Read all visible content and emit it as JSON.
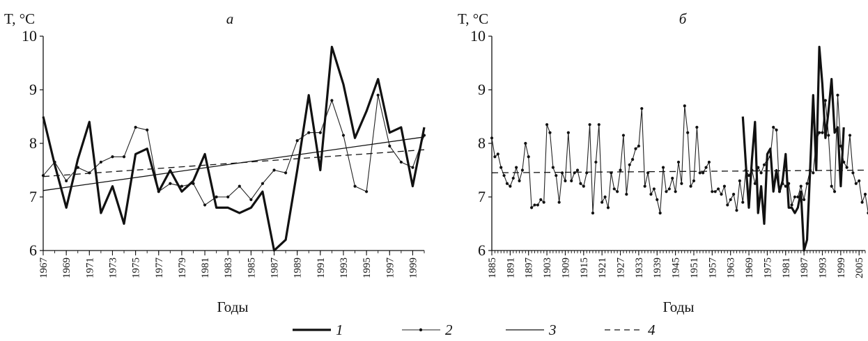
{
  "chart_data": [
    {
      "type": "line",
      "title": "а",
      "ylabel": "T, °C",
      "xlabel": "Годы",
      "ylim": [
        6,
        10
      ],
      "xlim": [
        1967,
        2000
      ],
      "yticks": [
        6,
        7,
        8,
        9,
        10
      ],
      "xticks": [
        1967,
        1969,
        1971,
        1973,
        1975,
        1977,
        1979,
        1981,
        1983,
        1985,
        1987,
        1989,
        1991,
        1993,
        1995,
        1997,
        1999
      ],
      "grid": false,
      "series": [
        {
          "name": "1",
          "style": "thick",
          "x": [
            1967,
            1968,
            1969,
            1970,
            1971,
            1972,
            1973,
            1974,
            1975,
            1976,
            1977,
            1978,
            1979,
            1980,
            1981,
            1982,
            1983,
            1984,
            1985,
            1986,
            1987,
            1988,
            1989,
            1990,
            1991,
            1992,
            1993,
            1994,
            1995,
            1996,
            1997,
            1998,
            1999,
            2000
          ],
          "y": [
            8.5,
            7.6,
            6.8,
            7.7,
            8.4,
            6.7,
            7.2,
            6.5,
            7.8,
            7.9,
            7.1,
            7.5,
            7.1,
            7.3,
            7.8,
            6.8,
            6.8,
            6.7,
            6.8,
            7.1,
            6.0,
            6.2,
            7.5,
            8.9,
            7.5,
            9.8,
            9.1,
            8.1,
            8.6,
            9.2,
            8.2,
            8.3,
            7.2,
            8.3
          ]
        },
        {
          "name": "2",
          "style": "thin-dots",
          "x": [
            1967,
            1968,
            1969,
            1970,
            1971,
            1972,
            1973,
            1974,
            1975,
            1976,
            1977,
            1978,
            1979,
            1980,
            1981,
            1982,
            1983,
            1984,
            1985,
            1986,
            1987,
            1988,
            1989,
            1990,
            1991,
            1992,
            1993,
            1994,
            1995,
            1996,
            1997,
            1998,
            1999,
            2000
          ],
          "y": [
            7.4,
            7.65,
            7.3,
            7.55,
            7.45,
            7.65,
            7.75,
            7.75,
            8.3,
            8.25,
            7.1,
            7.25,
            7.2,
            7.25,
            6.85,
            7.0,
            7.0,
            7.2,
            6.95,
            7.25,
            7.5,
            7.45,
            8.05,
            8.2,
            8.2,
            8.8,
            8.15,
            7.2,
            7.1,
            8.9,
            7.95,
            7.65,
            7.55,
            8.15
          ]
        },
        {
          "name": "3",
          "style": "solid-trend",
          "x": [
            1967,
            2000
          ],
          "y": [
            7.12,
            8.12
          ]
        },
        {
          "name": "4",
          "style": "dashed-trend",
          "x": [
            1967,
            2000
          ],
          "y": [
            7.38,
            7.88
          ]
        }
      ]
    },
    {
      "type": "line",
      "title": "б",
      "ylabel": "T, °C",
      "xlabel": "Годы",
      "ylim": [
        6,
        10
      ],
      "xlim": [
        1885,
        2007
      ],
      "yticks": [
        6,
        7,
        8,
        9,
        10
      ],
      "xticks": [
        1885,
        1891,
        1897,
        1903,
        1909,
        1915,
        1921,
        1927,
        1933,
        1939,
        1945,
        1951,
        1957,
        1963,
        1969,
        1975,
        1981,
        1987,
        1993,
        1999,
        2005
      ],
      "grid": false,
      "series": [
        {
          "name": "2",
          "style": "thin-dots",
          "x_start": 1885,
          "y": [
            8.1,
            7.75,
            7.8,
            7.55,
            7.4,
            7.25,
            7.2,
            7.35,
            7.55,
            7.3,
            7.5,
            8.0,
            7.75,
            6.8,
            6.85,
            6.85,
            6.95,
            6.9,
            8.35,
            8.2,
            7.55,
            7.4,
            6.9,
            7.45,
            7.3,
            8.2,
            7.3,
            7.45,
            7.5,
            7.25,
            7.2,
            7.45,
            8.35,
            6.7,
            7.65,
            8.35,
            6.9,
            7.0,
            6.8,
            7.45,
            7.15,
            7.1,
            7.5,
            8.15,
            7.05,
            7.6,
            7.7,
            7.9,
            7.95,
            8.65,
            7.2,
            7.45,
            7.05,
            7.15,
            6.95,
            6.7,
            7.55,
            7.1,
            7.15,
            7.35,
            7.1,
            7.65,
            7.25,
            8.7,
            8.2,
            7.2,
            7.3,
            8.3,
            7.45,
            7.45,
            7.55,
            7.65,
            7.1,
            7.1,
            7.15,
            7.05,
            7.2,
            6.85,
            6.95,
            7.05,
            6.75,
            7.3,
            6.9,
            7.5,
            7.4,
            7.5,
            7.25,
            7.55,
            7.45,
            7.6,
            7.7,
            7.75,
            8.3,
            8.25,
            7.1,
            7.25,
            7.2,
            7.25,
            6.85,
            7.0,
            7.0,
            7.2,
            6.95,
            7.25,
            7.5,
            7.45,
            8.05,
            8.2,
            8.2,
            8.8,
            8.15,
            7.2,
            7.1,
            8.9,
            7.95,
            7.65,
            7.55,
            8.15,
            7.45,
            7.25,
            7.3,
            6.9,
            7.05,
            6.7
          ]
        },
        {
          "name": "1",
          "style": "thick",
          "x_start": 1967,
          "y": [
            8.5,
            7.6,
            6.8,
            7.7,
            8.4,
            6.7,
            7.2,
            6.5,
            7.8,
            7.9,
            7.1,
            7.5,
            7.1,
            7.3,
            7.8,
            6.8,
            6.8,
            6.7,
            6.8,
            7.1,
            6.0,
            6.2,
            7.5,
            8.9,
            7.5,
            9.8,
            9.1,
            8.1,
            8.6,
            9.2,
            8.2,
            8.3,
            7.2,
            8.3
          ]
        },
        {
          "name": "4",
          "style": "dashed-trend",
          "x": [
            1885,
            2007
          ],
          "y": [
            7.45,
            7.5
          ]
        }
      ]
    }
  ],
  "legend": {
    "items": [
      {
        "label": "1",
        "style": "thick"
      },
      {
        "label": "2",
        "style": "thin-dots"
      },
      {
        "label": "3",
        "style": "solid-trend"
      },
      {
        "label": "4",
        "style": "dashed-trend"
      }
    ]
  }
}
